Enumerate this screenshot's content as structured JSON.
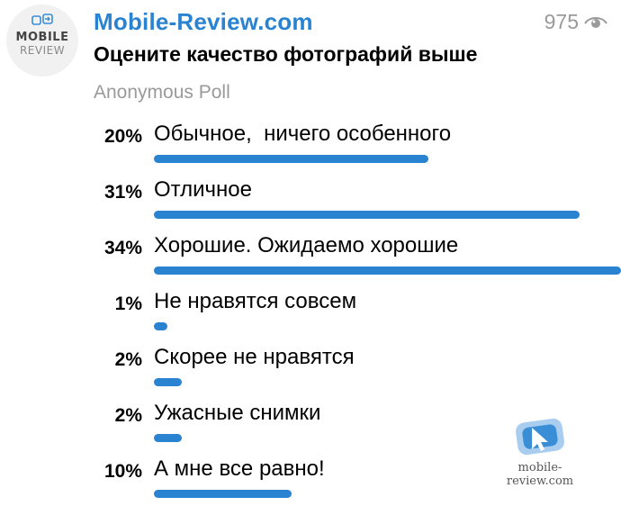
{
  "channel": {
    "avatar_line1": "MOBILE",
    "avatar_line2": "REVIEW",
    "name": "Mobile-Review.com",
    "views": "975",
    "views_icon": "eye-icon"
  },
  "poll": {
    "question": "Оцените качество фотографий выше",
    "type": "Anonymous Poll",
    "accent_color": "#2a83d0",
    "options": [
      {
        "percent_label": "20%",
        "label": "Обычное,  ничего особенного",
        "percent": 20
      },
      {
        "percent_label": "31%",
        "label": "Отличное",
        "percent": 31
      },
      {
        "percent_label": "34%",
        "label": "Хорошие. Ожидаемо хорошие",
        "percent": 34
      },
      {
        "percent_label": "1%",
        "label": "Не нравятся совсем",
        "percent": 1
      },
      {
        "percent_label": "2%",
        "label": "Скорее не нравятся",
        "percent": 2
      },
      {
        "percent_label": "2%",
        "label": "Ужасные снимки",
        "percent": 2
      },
      {
        "percent_label": "10%",
        "label": "А мне все равно!",
        "percent": 10
      }
    ]
  },
  "watermark": {
    "text": "mobile-review.com"
  }
}
